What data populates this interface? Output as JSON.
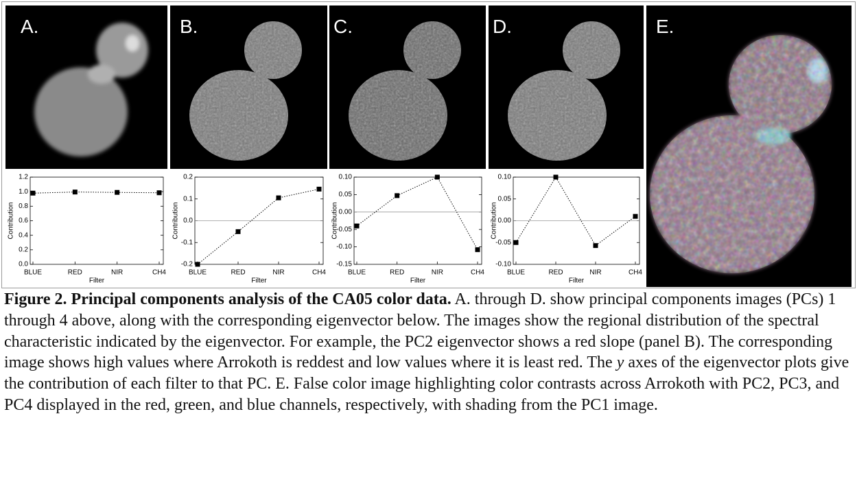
{
  "panels": [
    "A.",
    "B.",
    "C.",
    "D.",
    "E."
  ],
  "chart_data": [
    {
      "type": "line",
      "xlabel": "Filter",
      "ylabel": "Contribution",
      "categories": [
        "BLUE",
        "RED",
        "NIR",
        "CH4"
      ],
      "values": [
        0.98,
        0.995,
        0.99,
        0.985
      ],
      "color": "#000000",
      "ylim": [
        0,
        1.2
      ],
      "yticks": [
        {
          "value": 0,
          "label": "0.0"
        },
        0.2,
        0.4,
        0.6,
        0.8,
        {
          "value": 1,
          "label": "1.0"
        },
        1.2
      ],
      "zero_line": false
    },
    {
      "type": "line",
      "xlabel": "Filter",
      "ylabel": "Contribution",
      "categories": [
        "BLUE",
        "RED",
        "NIR",
        "CH4"
      ],
      "values": [
        -0.2,
        -0.05,
        0.105,
        0.145
      ],
      "color": "#000000",
      "ylim": [
        -0.2,
        0.2
      ],
      "yticks": [
        -0.2,
        -0.1,
        {
          "value": 0,
          "label": "0.0"
        },
        0.1,
        0.2
      ],
      "zero_line": true
    },
    {
      "type": "line",
      "xlabel": "Filter",
      "ylabel": "Contribution",
      "categories": [
        "BLUE",
        "RED",
        "NIR",
        "CH4"
      ],
      "values": [
        -0.04,
        0.047,
        0.1,
        -0.108
      ],
      "color": "#000000",
      "ylim": [
        -0.15,
        0.1
      ],
      "yticks": [
        -0.15,
        {
          "value": -0.1,
          "label": "-0.10"
        },
        -0.05,
        {
          "value": 0,
          "label": "0.00"
        },
        0.05,
        {
          "value": 0.1,
          "label": "0.10"
        }
      ],
      "zero_line": true
    },
    {
      "type": "line",
      "xlabel": "Filter",
      "ylabel": "Contribution",
      "categories": [
        "BLUE",
        "RED",
        "NIR",
        "CH4"
      ],
      "values": [
        -0.05,
        0.1,
        -0.057,
        0.01
      ],
      "color": "#000000",
      "ylim": [
        -0.1,
        0.1
      ],
      "yticks": [
        {
          "value": -0.1,
          "label": "-0.10"
        },
        -0.05,
        {
          "value": 0,
          "label": "0.00"
        },
        0.05,
        {
          "value": 0.1,
          "label": "0.10"
        }
      ],
      "zero_line": true
    }
  ],
  "caption": {
    "title": "Figure 2.  Principal components analysis of the CA05 color data.",
    "text_before": " A. through D. show principal components images (PCs) 1 through 4 above, along with the corresponding eigenvector below.  The images show the regional distribution of the spectral characteristic indicated by the eigenvector.  For example, the PC2 eigenvector shows a red slope (panel B).  The corresponding image shows high values where Arrokoth is reddest and low values where it is least red.  The ",
    "italic": "y",
    "text_after": " axes of the eigenvector plots give the contribution of each filter to that PC.  E. False color image highlighting color contrasts across Arrokoth with PC2, PC3, and PC4 displayed in the red, green, and blue channels, respectively, with shading from the PC1 image."
  }
}
